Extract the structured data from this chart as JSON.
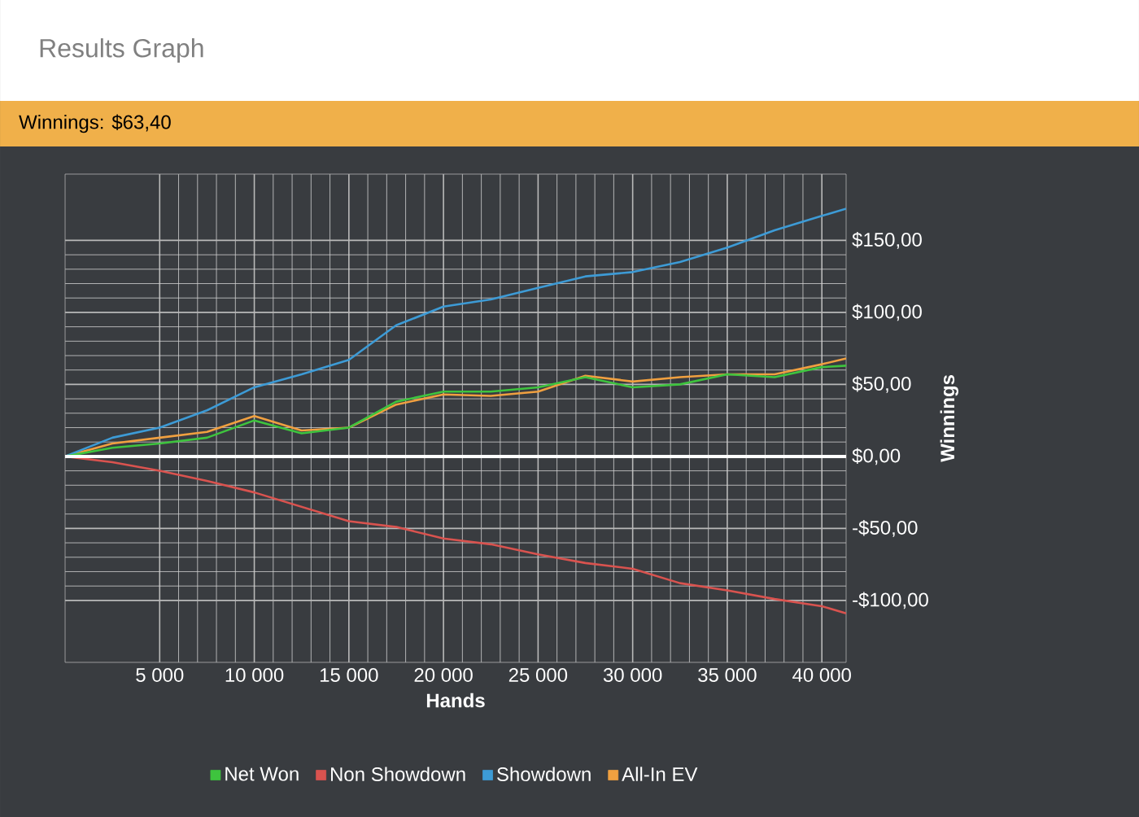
{
  "chart_data": {
    "type": "line",
    "title": "Results Graph",
    "subtitle": "Winnings: $63,40",
    "xlabel": "Hands",
    "ylabel": "Winnings",
    "x": [
      0,
      2500,
      5000,
      7500,
      10000,
      12500,
      15000,
      17500,
      20000,
      22500,
      25000,
      27500,
      30000,
      32500,
      35000,
      37500,
      40000,
      41282
    ],
    "series": [
      {
        "name": "Net Won",
        "color": "#3ec43e",
        "values": [
          0,
          6,
          9,
          13,
          25,
          16,
          20,
          38,
          45,
          45,
          48,
          55,
          48,
          50,
          57,
          55,
          62,
          63
        ]
      },
      {
        "name": "Non Showdown",
        "color": "#d9534f",
        "values": [
          0,
          -4,
          -10,
          -17,
          -25,
          -35,
          -45,
          -49,
          -57,
          -61,
          -68,
          -74,
          -78,
          -88,
          -93,
          -99,
          -104,
          -109
        ]
      },
      {
        "name": "Showdown",
        "color": "#3d9bd6",
        "values": [
          0,
          13,
          20,
          32,
          48,
          57,
          67,
          91,
          104,
          109,
          117,
          125,
          128,
          135,
          145,
          157,
          167,
          172
        ]
      },
      {
        "name": "All-In EV",
        "color": "#f0a040",
        "values": [
          0,
          9,
          13,
          17,
          28,
          18,
          20,
          36,
          43,
          42,
          45,
          56,
          52,
          55,
          57,
          57,
          64,
          68
        ]
      }
    ],
    "xlim": [
      0,
      41282
    ],
    "ylim": [
      -143,
      196
    ],
    "xticks": [
      {
        "value": 5000,
        "label": "5 000"
      },
      {
        "value": 10000,
        "label": "10 000"
      },
      {
        "value": 15000,
        "label": "15 000"
      },
      {
        "value": 20000,
        "label": "20 000"
      },
      {
        "value": 25000,
        "label": "25 000"
      },
      {
        "value": 30000,
        "label": "30 000"
      },
      {
        "value": 35000,
        "label": "35 000"
      },
      {
        "value": 40000,
        "label": "40 000"
      }
    ],
    "yticks": [
      {
        "value": -100,
        "label": "-$100,00"
      },
      {
        "value": -50,
        "label": "-$50,00"
      },
      {
        "value": 0,
        "label": "$0,00"
      },
      {
        "value": 50,
        "label": "$50,00"
      },
      {
        "value": 100,
        "label": "$100,00"
      },
      {
        "value": 150,
        "label": "$150,00"
      }
    ],
    "ref_lines": [
      {
        "axis": "y",
        "value": 0,
        "color": "#ffffff"
      }
    ],
    "grid": true,
    "legend": "bottom",
    "marker": "none",
    "line_style": "solid"
  }
}
